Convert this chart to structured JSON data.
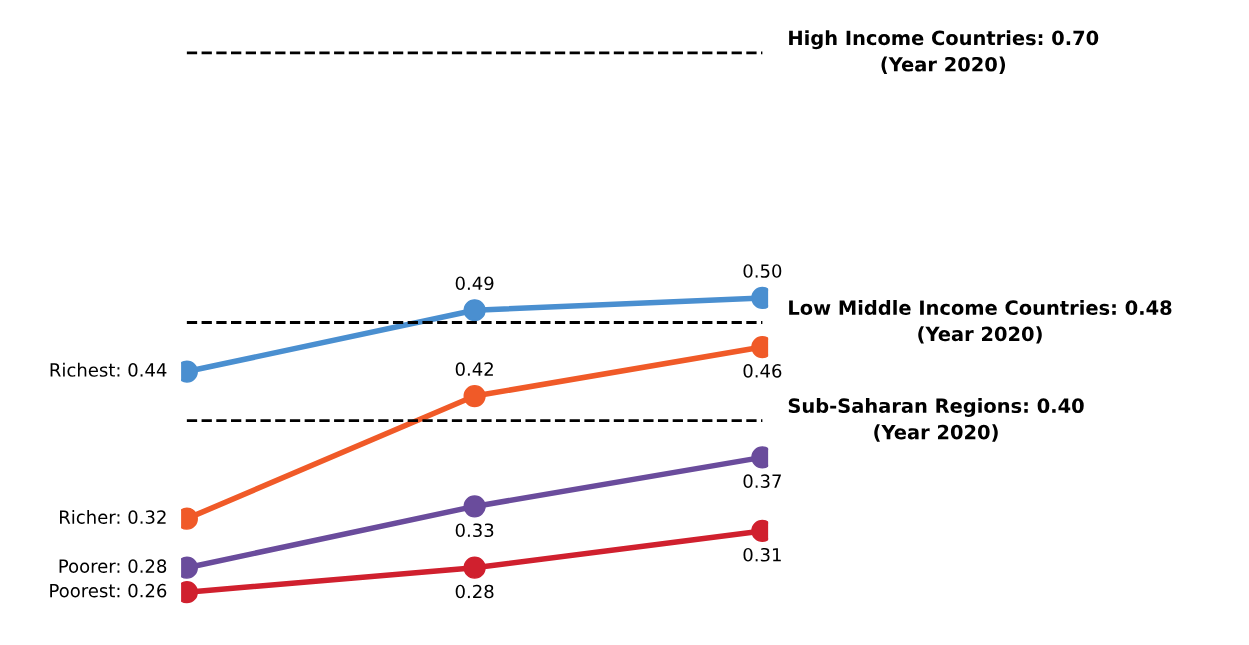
{
  "chart_data": {
    "type": "line",
    "categories": [
      null,
      null,
      null
    ],
    "series": [
      {
        "color": "#4a8fd0",
        "values": [
          0.44,
          0.49,
          0.5
        ],
        "value_labels": [
          "Richest: 0.44",
          "0.49",
          "0.50"
        ]
      },
      {
        "color": "#f05a28",
        "values": [
          0.32,
          0.42,
          0.46
        ],
        "value_labels": [
          "Richer: 0.32",
          "0.42",
          "0.46"
        ]
      },
      {
        "color": "#6a4c9c",
        "values": [
          0.28,
          0.33,
          0.37
        ],
        "value_labels": [
          "Poorer: 0.28",
          "0.33",
          "0.37"
        ]
      },
      {
        "color": "#d0202e",
        "values": [
          0.26,
          0.28,
          0.31
        ],
        "value_labels": [
          "Poorest: 0.26",
          "0.28",
          "0.31"
        ]
      }
    ],
    "ref_lines": [
      {
        "axis": "y",
        "value": 0.7,
        "label": "High Income Countries: 0.70\n(Year 2020)",
        "color": "#000000",
        "line_style": "dashed"
      },
      {
        "axis": "y",
        "value": 0.48,
        "label": "Low Middle Income Countries: 0.48\n(Year 2020)",
        "color": "#000000",
        "line_style": "dashed"
      },
      {
        "axis": "y",
        "value": 0.4,
        "label": "Sub-Saharan Regions: 0.40\n(Year 2020)",
        "color": "#000000",
        "line_style": "dashed"
      }
    ],
    "marker": "circle",
    "line_style": "solid",
    "legend": false,
    "tick_labels": false
  }
}
